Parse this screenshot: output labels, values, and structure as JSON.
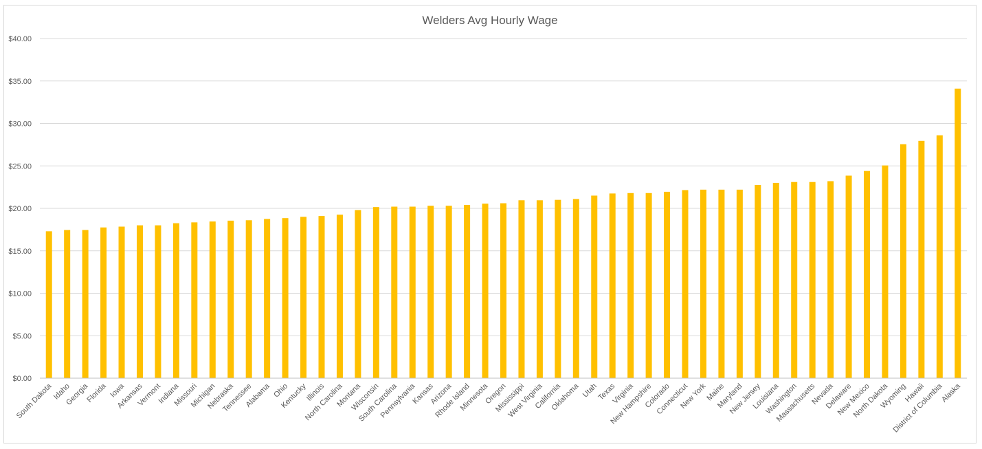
{
  "chart_data": {
    "type": "bar",
    "title": "Welders Avg Hourly Wage",
    "xlabel": "",
    "ylabel": "",
    "ylim": [
      0,
      40
    ],
    "y_ticks": [
      "$0.00",
      "$5.00",
      "$10.00",
      "$15.00",
      "$20.00",
      "$25.00",
      "$30.00",
      "$35.00",
      "$40.00"
    ],
    "grid": true,
    "legend": "none",
    "bar_color": "#FFC000",
    "categories": [
      "South Dakota",
      "Idaho",
      "Georgia",
      "Florida",
      "Iowa",
      "Arkansas",
      "Vermont",
      "Indiana",
      "Missouri",
      "Michigan",
      "Nebraska",
      "Tennessee",
      "Alabama",
      "Ohio",
      "Kentucky",
      "Illinois",
      "North Carolina",
      "Montana",
      "Wisconsin",
      "South Carolina",
      "Pennsylvania",
      "Kansas",
      "Arizona",
      "Rhode Island",
      "Minnesota",
      "Oregon",
      "Mississippi",
      "West Virginia",
      "California",
      "Oklahoma",
      "Utah",
      "Texas",
      "Virginia",
      "New Hampshire",
      "Colorado",
      "Connecticut",
      "New York",
      "Maine",
      "Maryland",
      "New Jersey",
      "Louisiana",
      "Washington",
      "Massachusetts",
      "Nevada",
      "Delaware",
      "New Mexico",
      "North Dakota",
      "Wyoming",
      "Hawaii",
      "District of Columbia",
      "Alaska"
    ],
    "values": [
      17.3,
      17.45,
      17.45,
      17.75,
      17.85,
      18.0,
      18.0,
      18.25,
      18.35,
      18.45,
      18.55,
      18.6,
      18.75,
      18.85,
      19.0,
      19.1,
      19.25,
      19.8,
      20.15,
      20.2,
      20.2,
      20.3,
      20.3,
      20.4,
      20.55,
      20.6,
      20.95,
      20.95,
      21.0,
      21.1,
      21.5,
      21.75,
      21.8,
      21.8,
      21.95,
      22.15,
      22.2,
      22.2,
      22.2,
      22.75,
      23.0,
      23.1,
      23.1,
      23.2,
      23.85,
      24.4,
      25.05,
      27.55,
      27.95,
      28.6,
      34.1
    ]
  }
}
